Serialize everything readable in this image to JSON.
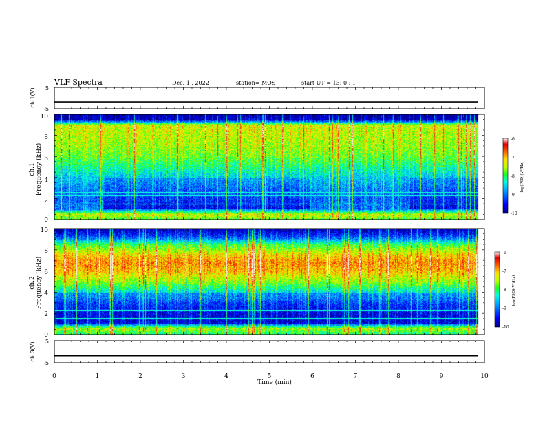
{
  "header": {
    "title": "VLF Spectra",
    "date": "Dec. 1  , 2022",
    "station": "station= MOS",
    "start_time": "start  UT  =   13: 0  : 1"
  },
  "chart_data": [
    {
      "type": "line",
      "name": "ch1-waveform",
      "ylabel": "ch.1(V)",
      "yticks": [
        "5",
        "-5"
      ],
      "ylim": [
        -5,
        5
      ],
      "x": [
        0,
        9.85
      ],
      "y": [
        -1.8,
        -1.8
      ]
    },
    {
      "type": "heatmap",
      "name": "ch1-spectrogram",
      "ylabel": "ch.1\nFrequency (kHz)",
      "yticks": [
        "0",
        "2",
        "4",
        "6",
        "8",
        "10"
      ],
      "ylim": [
        0,
        10
      ],
      "xlim": [
        0,
        10
      ],
      "colorbar": {
        "label": "log(PSD)(V²/Hz)",
        "ticks": [
          "-6",
          "-7",
          "-8",
          "-9",
          "-10"
        ],
        "range": [
          -10,
          -6
        ]
      },
      "profile": [
        {
          "f": 0.0,
          "v": -8.0
        },
        {
          "f": 0.5,
          "v": -7.4
        },
        {
          "f": 1.0,
          "v": -9.0
        },
        {
          "f": 2.0,
          "v": -9.1
        },
        {
          "f": 3.0,
          "v": -8.9
        },
        {
          "f": 4.0,
          "v": -8.6
        },
        {
          "f": 5.0,
          "v": -8.2
        },
        {
          "f": 6.0,
          "v": -7.8
        },
        {
          "f": 7.0,
          "v": -7.6
        },
        {
          "f": 8.0,
          "v": -7.5
        },
        {
          "f": 9.0,
          "v": -7.4
        },
        {
          "f": 9.5,
          "v": -9.8
        },
        {
          "f": 10.0,
          "v": -9.9
        }
      ],
      "segments": [
        {
          "t0": 0.0,
          "t1": 1.15,
          "low_v": -8.2
        },
        {
          "t0": 1.15,
          "t1": 5.95,
          "low_v": -9.6
        },
        {
          "t0": 5.95,
          "t1": 8.25,
          "low_v": -8.8
        },
        {
          "t0": 8.25,
          "t1": 9.85,
          "low_v": -9.6
        }
      ],
      "lines_khz": [
        1.5,
        2.3,
        2.6
      ]
    },
    {
      "type": "heatmap",
      "name": "ch2-spectrogram",
      "ylabel": "ch.2\nFrequency (kHz)",
      "yticks": [
        "0",
        "2",
        "4",
        "6",
        "8",
        "10"
      ],
      "ylim": [
        0,
        10
      ],
      "xlim": [
        0,
        10
      ],
      "colorbar": {
        "label": "log(PSD)(V²/Hz)",
        "ticks": [
          "-6",
          "-7",
          "-8",
          "-9",
          "-10"
        ],
        "range": [
          -10,
          -6
        ]
      },
      "profile": [
        {
          "f": 0.0,
          "v": -8.2
        },
        {
          "f": 0.6,
          "v": -7.6
        },
        {
          "f": 1.2,
          "v": -9.7
        },
        {
          "f": 2.0,
          "v": -9.6
        },
        {
          "f": 3.0,
          "v": -9.3
        },
        {
          "f": 4.0,
          "v": -8.5
        },
        {
          "f": 5.0,
          "v": -7.7
        },
        {
          "f": 6.0,
          "v": -7.1
        },
        {
          "f": 6.8,
          "v": -6.9
        },
        {
          "f": 7.5,
          "v": -7.2
        },
        {
          "f": 8.5,
          "v": -8.0
        },
        {
          "f": 9.2,
          "v": -9.2
        },
        {
          "f": 10.0,
          "v": -9.9
        }
      ],
      "segments": [
        {
          "t0": 0.0,
          "t1": 9.85,
          "low_v": -9.6
        }
      ],
      "lines_khz": [
        1.5,
        2.3
      ]
    },
    {
      "type": "line",
      "name": "ch3-waveform",
      "ylabel": "ch.3(V)",
      "yticks": [
        "5",
        "-5"
      ],
      "ylim": [
        -5,
        5
      ],
      "x": [
        0,
        9.85
      ],
      "y": [
        -1.8,
        -1.8
      ]
    }
  ],
  "xaxis": {
    "label": "Time  (min)",
    "ticks": [
      "0",
      "1",
      "2",
      "3",
      "4",
      "5",
      "6",
      "7",
      "8",
      "9",
      "10"
    ],
    "xlim": [
      0,
      10
    ]
  },
  "colors": {
    "colormap": [
      "#00008c",
      "#0000ff",
      "#0080ff",
      "#00e0ff",
      "#00ff90",
      "#40ff00",
      "#c0ff00",
      "#ffe000",
      "#ff8000",
      "#ff0000",
      "#c80000",
      "#ffffff"
    ]
  }
}
